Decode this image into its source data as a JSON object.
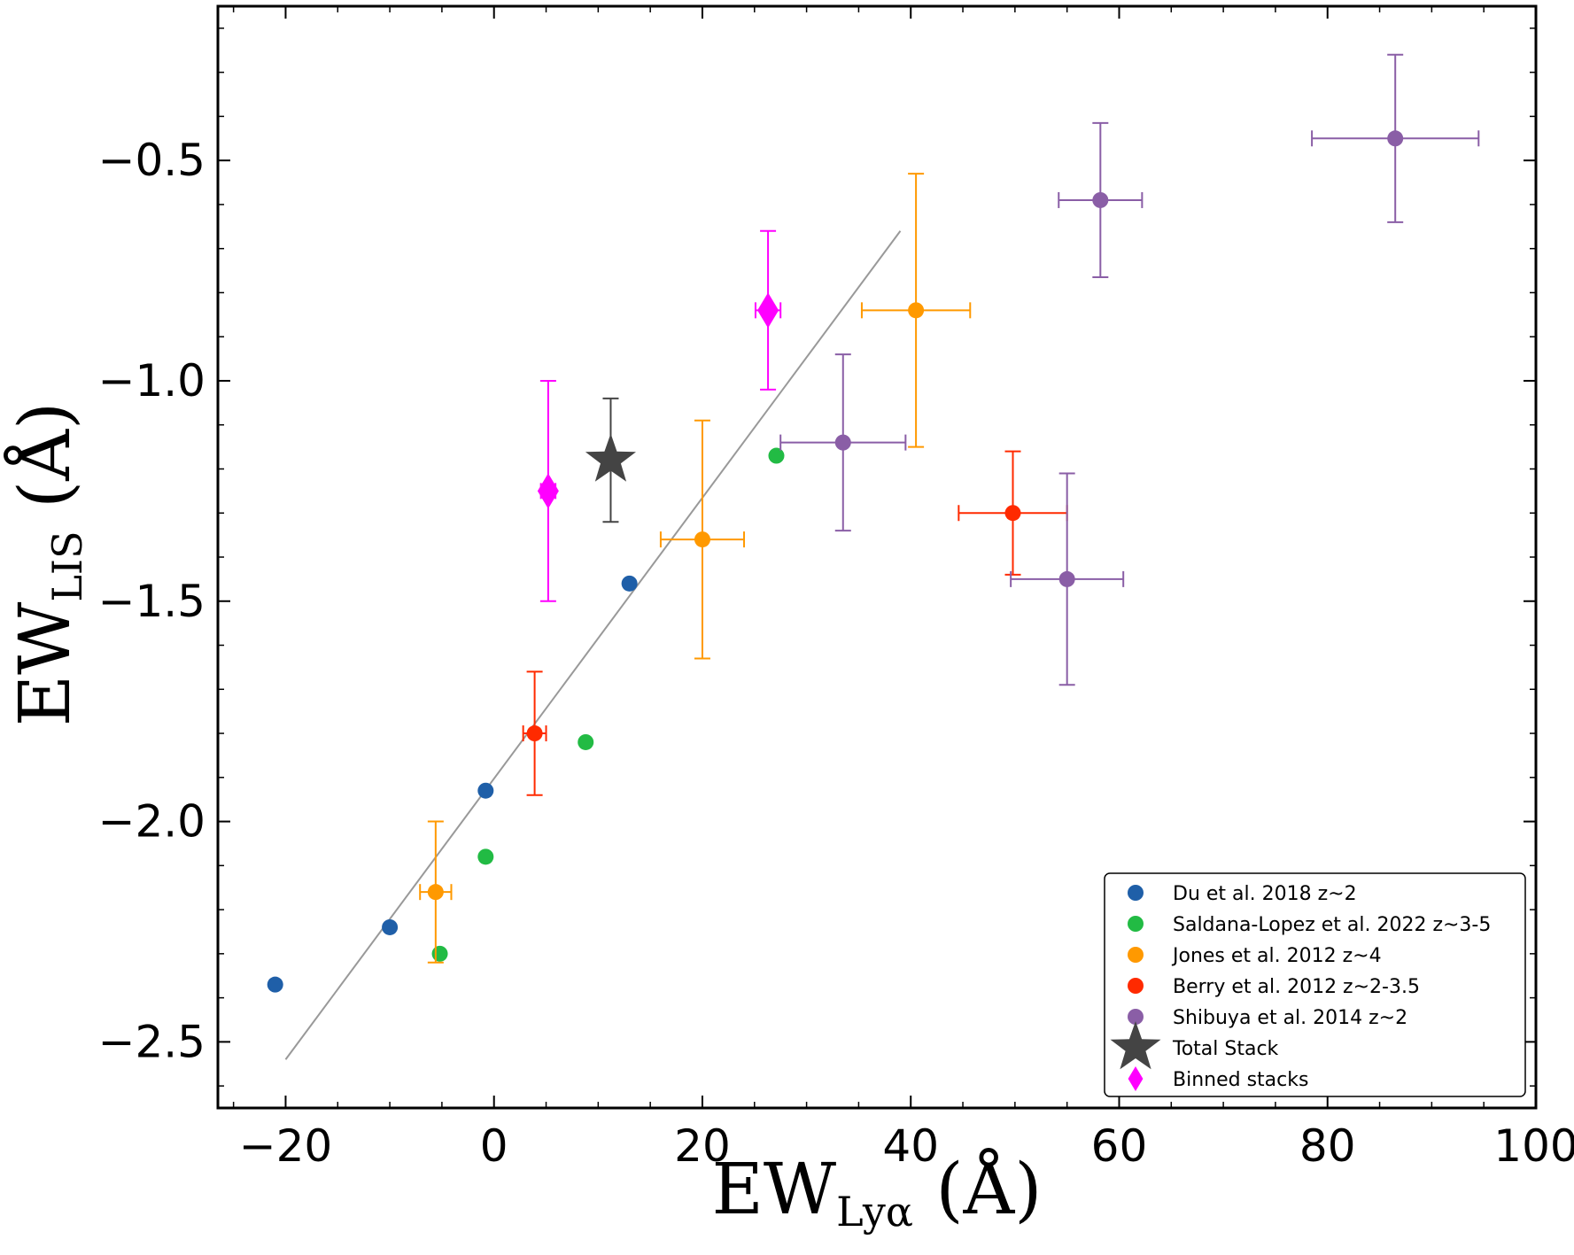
{
  "chart_data": {
    "type": "scatter",
    "title": "",
    "xlabel": {
      "main": "EW",
      "sub": "Lyα",
      "unit": " (Å)"
    },
    "ylabel": {
      "main": "EW",
      "sub": "LIS",
      "unit": " (Å)"
    },
    "xlim": [
      -26.5,
      100
    ],
    "ylim": [
      -2.65,
      -0.15
    ],
    "xticks": [
      -20,
      0,
      20,
      40,
      60,
      80,
      100
    ],
    "xtick_labels": [
      "−20",
      "0",
      "20",
      "40",
      "60",
      "80",
      "100"
    ],
    "yticks": [
      -2.5,
      -2.0,
      -1.5,
      -1.0,
      -0.5
    ],
    "ytick_labels": [
      "−2.5",
      "−2.0",
      "−1.5",
      "−1.0",
      "−0.5"
    ],
    "grid": false,
    "legend_position": "bottom-right",
    "fit_line": {
      "x": [
        -20,
        39
      ],
      "y": [
        -2.54,
        -0.66
      ],
      "color": "#999999"
    },
    "series": [
      {
        "name": "Du et al. 2018 z~2",
        "color": "#1f5fa8",
        "marker": "circle",
        "points": [
          {
            "x": -21,
            "y": -2.37
          },
          {
            "x": -10,
            "y": -2.24
          },
          {
            "x": -0.8,
            "y": -1.93
          },
          {
            "x": 13,
            "y": -1.46
          }
        ]
      },
      {
        "name": "Saldana-Lopez et al. 2022 z~3-5",
        "color": "#22bb44",
        "marker": "circle",
        "points": [
          {
            "x": -5.2,
            "y": -2.3
          },
          {
            "x": -0.8,
            "y": -2.08
          },
          {
            "x": 8.8,
            "y": -1.82
          },
          {
            "x": 27.1,
            "y": -1.17
          }
        ]
      },
      {
        "name": "Jones et al. 2012 z~4",
        "color": "#ff9900",
        "marker": "circle",
        "points": [
          {
            "x": -5.6,
            "y": -2.16,
            "xerr": 1.5,
            "yerr": 0.16
          },
          {
            "x": 20,
            "y": -1.36,
            "xerr": 4,
            "yerr": 0.27
          },
          {
            "x": 40.5,
            "y": -0.84,
            "xerr": 5.2,
            "yerr": 0.31
          }
        ]
      },
      {
        "name": "Berry et al. 2012 z~2-3.5",
        "color": "#ff2a00",
        "marker": "circle",
        "points": [
          {
            "x": 3.9,
            "y": -1.8,
            "xerr": 1.1,
            "yerr": 0.14
          },
          {
            "x": 49.8,
            "y": -1.3,
            "xerr": 5.2,
            "yerr": 0.14
          }
        ]
      },
      {
        "name": "Shibuya et al. 2014 z~2",
        "color": "#8a5ea6",
        "marker": "circle",
        "points": [
          {
            "x": 33.5,
            "y": -1.14,
            "xerr": 6,
            "yerr": 0.2
          },
          {
            "x": 55,
            "y": -1.45,
            "xerr": 5.4,
            "yerr": 0.24
          },
          {
            "x": 58.2,
            "y": -0.59,
            "xerr": 4,
            "yerr": 0.175
          },
          {
            "x": 86.5,
            "y": -0.45,
            "xerr": 8,
            "yerr": 0.19
          }
        ]
      },
      {
        "name": "Total Stack",
        "color": "#444444",
        "marker": "star",
        "points": [
          {
            "x": 11.2,
            "y": -1.18,
            "yerr": 0.14
          }
        ]
      },
      {
        "name": "Binned stacks",
        "color": "#ff00ff",
        "marker": "diamond",
        "points": [
          {
            "x": 5.2,
            "y": -1.25,
            "xerr": 0.7,
            "yerr": 0.25
          },
          {
            "x": 26.3,
            "y": -0.84,
            "xerr": 1.2,
            "yerr": 0.18
          }
        ]
      }
    ]
  }
}
